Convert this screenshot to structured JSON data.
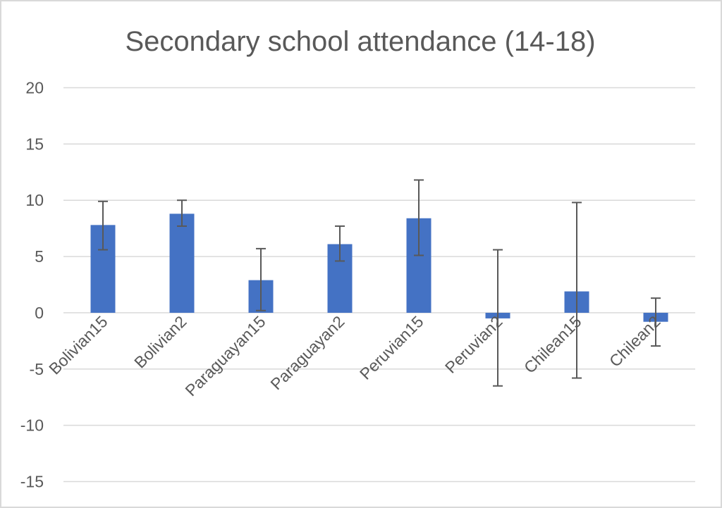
{
  "chart_data": {
    "type": "bar",
    "title": "Secondary school attendance (14-18)",
    "xlabel": "",
    "ylabel": "",
    "ylim": [
      -15,
      20
    ],
    "yticks": [
      20,
      15,
      10,
      5,
      0,
      -5,
      -10,
      -15
    ],
    "ytick_labels": [
      "20",
      "15",
      "10",
      "5",
      "0",
      "-5",
      "-10",
      "-15"
    ],
    "grid": true,
    "legend": "none",
    "categories": [
      "Bolivian15",
      "Bolivian2",
      "Paraguayan15",
      "Paraguayan2",
      "Peruvian15",
      "Peruvian2",
      "Chilean15",
      "Chilean2"
    ],
    "values": [
      7.8,
      8.8,
      2.9,
      6.1,
      8.4,
      -0.5,
      1.9,
      -0.8
    ],
    "error_upper": [
      9.9,
      10.0,
      5.7,
      7.7,
      11.8,
      5.6,
      9.8,
      1.3
    ],
    "error_lower": [
      5.6,
      7.7,
      0.2,
      4.6,
      5.1,
      -6.5,
      -5.8,
      -2.95
    ],
    "colors": {
      "bar": "#4472c4",
      "error_bar": "#595959",
      "grid": "#d9d9d9",
      "text": "#595959"
    }
  }
}
